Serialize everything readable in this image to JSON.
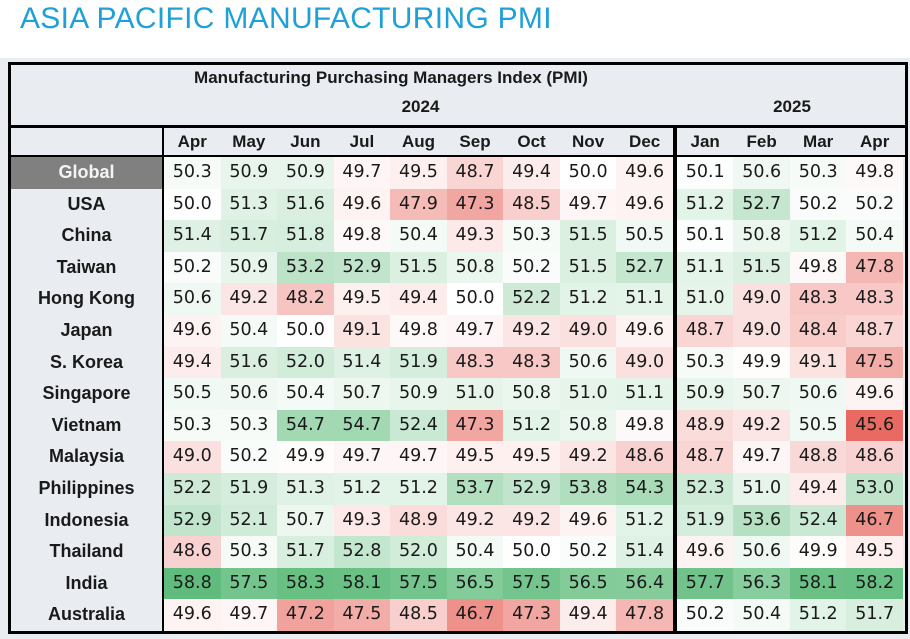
{
  "page_title": "ASIA PACIFIC MANUFACTURING PMI",
  "table": {
    "title": "Manufacturing Purchasing Managers Index (PMI)",
    "year_groups": [
      {
        "year": "2024",
        "months": [
          "Apr",
          "May",
          "Jun",
          "Jul",
          "Aug",
          "Sep",
          "Oct",
          "Nov",
          "Dec"
        ]
      },
      {
        "year": "2025",
        "months": [
          "Jan",
          "Feb",
          "Mar",
          "Apr"
        ]
      }
    ],
    "color_scale": {
      "low": "#e8635a",
      "mid": "#ffffff",
      "high": "#5dbb7a",
      "midpoint": 50.0
    },
    "rows": [
      {
        "country": "Global",
        "highlight": true,
        "v2024": [
          50.3,
          50.9,
          50.9,
          49.7,
          49.5,
          48.7,
          49.4,
          50.0,
          49.6
        ],
        "v2025": [
          50.1,
          50.6,
          50.3,
          49.8
        ]
      },
      {
        "country": "USA",
        "v2024": [
          50.0,
          51.3,
          51.6,
          49.6,
          47.9,
          47.3,
          48.5,
          49.7,
          49.6
        ],
        "v2025": [
          51.2,
          52.7,
          50.2,
          50.2
        ]
      },
      {
        "country": "China",
        "v2024": [
          51.4,
          51.7,
          51.8,
          49.8,
          50.4,
          49.3,
          50.3,
          51.5,
          50.5
        ],
        "v2025": [
          50.1,
          50.8,
          51.2,
          50.4
        ]
      },
      {
        "country": "Taiwan",
        "v2024": [
          50.2,
          50.9,
          53.2,
          52.9,
          51.5,
          50.8,
          50.2,
          51.5,
          52.7
        ],
        "v2025": [
          51.1,
          51.5,
          49.8,
          47.8
        ]
      },
      {
        "country": "Hong Kong",
        "v2024": [
          50.6,
          49.2,
          48.2,
          49.5,
          49.4,
          50.0,
          52.2,
          51.2,
          51.1
        ],
        "v2025": [
          51.0,
          49.0,
          48.3,
          48.3
        ]
      },
      {
        "country": "Japan",
        "v2024": [
          49.6,
          50.4,
          50.0,
          49.1,
          49.8,
          49.7,
          49.2,
          49.0,
          49.6
        ],
        "v2025": [
          48.7,
          49.0,
          48.4,
          48.7
        ]
      },
      {
        "country": "S. Korea",
        "v2024": [
          49.4,
          51.6,
          52.0,
          51.4,
          51.9,
          48.3,
          48.3,
          50.6,
          49.0
        ],
        "v2025": [
          50.3,
          49.9,
          49.1,
          47.5
        ]
      },
      {
        "country": "Singapore",
        "v2024": [
          50.5,
          50.6,
          50.4,
          50.7,
          50.9,
          51.0,
          50.8,
          51.0,
          51.1
        ],
        "v2025": [
          50.9,
          50.7,
          50.6,
          49.6
        ]
      },
      {
        "country": "Vietnam",
        "v2024": [
          50.3,
          50.3,
          54.7,
          54.7,
          52.4,
          47.3,
          51.2,
          50.8,
          49.8
        ],
        "v2025": [
          48.9,
          49.2,
          50.5,
          45.6
        ]
      },
      {
        "country": "Malaysia",
        "v2024": [
          49.0,
          50.2,
          49.9,
          49.7,
          49.7,
          49.5,
          49.5,
          49.2,
          48.6
        ],
        "v2025": [
          48.7,
          49.7,
          48.8,
          48.6
        ]
      },
      {
        "country": "Philippines",
        "v2024": [
          52.2,
          51.9,
          51.3,
          51.2,
          51.2,
          53.7,
          52.9,
          53.8,
          54.3
        ],
        "v2025": [
          52.3,
          51.0,
          49.4,
          53.0
        ]
      },
      {
        "country": "Indonesia",
        "v2024": [
          52.9,
          52.1,
          50.7,
          49.3,
          48.9,
          49.2,
          49.2,
          49.6,
          51.2
        ],
        "v2025": [
          51.9,
          53.6,
          52.4,
          46.7
        ]
      },
      {
        "country": "Thailand",
        "v2024": [
          48.6,
          50.3,
          51.7,
          52.8,
          52.0,
          50.4,
          50.0,
          50.2,
          51.4
        ],
        "v2025": [
          49.6,
          50.6,
          49.9,
          49.5
        ]
      },
      {
        "country": "India",
        "v2024": [
          58.8,
          57.5,
          58.3,
          58.1,
          57.5,
          56.5,
          57.5,
          56.5,
          56.4
        ],
        "v2025": [
          57.7,
          56.3,
          58.1,
          58.2
        ]
      },
      {
        "country": "Australia",
        "v2024": [
          49.6,
          49.7,
          47.2,
          47.5,
          48.5,
          46.7,
          47.3,
          49.4,
          47.8
        ],
        "v2025": [
          50.2,
          50.4,
          51.2,
          51.7
        ]
      }
    ]
  }
}
